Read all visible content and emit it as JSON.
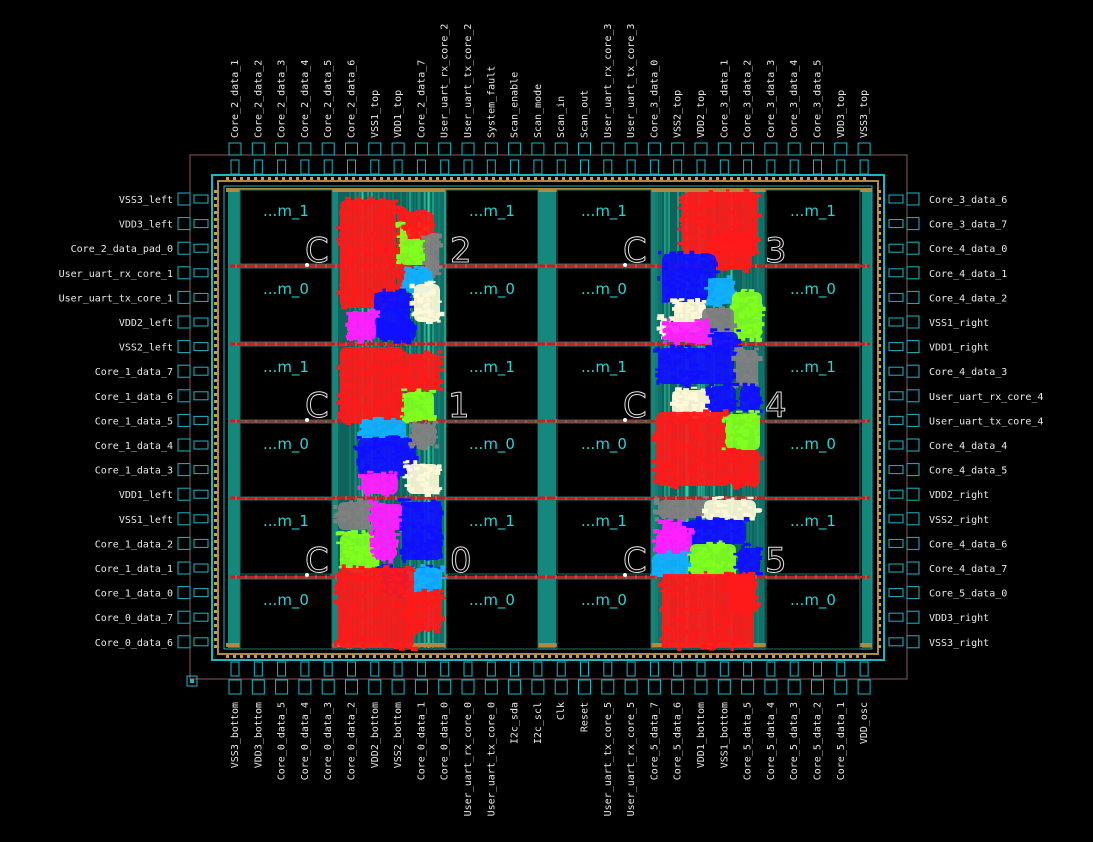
{
  "colors": {
    "background": "#000000",
    "pad_outline": "#1fb6c4",
    "core_ring": "#2a9a8a",
    "macro_text": "#2fd0d0",
    "cell_red": "#ff1a1a",
    "cell_blue": "#1010ff",
    "cell_green": "#80ff20",
    "cell_cyan": "#10b0ff",
    "cell_magenta": "#ff20ff",
    "cell_gray": "#808080",
    "cell_cream": "#fff8d8",
    "routing_red": "#c82020",
    "routing_teal": "#18a090"
  },
  "pins": {
    "top": [
      "Core_2_data_1",
      "Core_2_data_2",
      "Core_2_data_3",
      "Core_2_data_4",
      "Core_2_data_5",
      "Core_2_data_6",
      "VSS1_top",
      "VDD1_top",
      "Core_2_data_7",
      "User_uart_rx_core_2",
      "User_uart_tx_core_2",
      "System_fault",
      "Scan_enable",
      "Scan_mode",
      "Scan_in",
      "Scan_out",
      "User_uart_rx_core_3",
      "User_uart_tx_core_3",
      "Core_3_data_0",
      "VSS2_top",
      "VDD2_top",
      "Core_3_data_1",
      "Core_3_data_2",
      "Core_3_data_3",
      "Core_3_data_4",
      "Core_3_data_5",
      "VDD3_top",
      "VSS3_top"
    ],
    "bottom": [
      "VSS3_bottom",
      "VDD3_bottom",
      "Core_0_data_5",
      "Core_0_data_4",
      "Core_0_data_3",
      "Core_0_data_2",
      "VDD2_bottom",
      "VSS2_bottom",
      "Core_0_data_1",
      "Core_0_data_0",
      "User_uart_rx_core_0",
      "User_uart_tx_core_0",
      "I2c_sda",
      "I2c_scl",
      "Clk",
      "Reset",
      "User_uart_tx_core_5",
      "User_uart_rx_core_5",
      "Core_5_data_7",
      "Core_5_data_6",
      "VDD1_bottom",
      "VSS1_bottom",
      "Core_5_data_5",
      "Core_5_data_4",
      "Core_5_data_3",
      "Core_5_data_2",
      "Core_5_data_1",
      "VDD_osc"
    ],
    "left": [
      "VSS3_left",
      "VDD3_left",
      "Core_2_data_pad_0",
      "User_uart_rx_core_1",
      "User_uart_tx_core_1",
      "VDD2_left",
      "VSS2_left",
      "Core_1_data_7",
      "Core_1_data_6",
      "Core_1_data_5",
      "Core_1_data_4",
      "Core_1_data_3",
      "VDD1_left",
      "VSS1_left",
      "Core_1_data_2",
      "Core_1_data_1",
      "Core_1_data_0",
      "Core_0_data_7",
      "Core_0_data_6"
    ],
    "right": [
      "Core_3_data_6",
      "Core_3_data_7",
      "Core_4_data_0",
      "Core_4_data_1",
      "Core_4_data_2",
      "VSS1_right",
      "VDD1_right",
      "Core_4_data_3",
      "User_uart_rx_core_4",
      "User_uart_tx_core_4",
      "Core_4_data_4",
      "Core_4_data_5",
      "VDD2_right",
      "VSS2_right",
      "Core_4_data_6",
      "Core_4_data_7",
      "Core_5_data_0",
      "VDD3_right",
      "VSS3_right"
    ]
  },
  "macros": [
    {
      "label": "...m_1"
    },
    {
      "label": "...m_1"
    },
    {
      "label": "...m_1"
    },
    {
      "label": "...m_1"
    },
    {
      "label": "...m_0"
    },
    {
      "label": "...m_0"
    },
    {
      "label": "...m_0"
    },
    {
      "label": "...m_0"
    },
    {
      "label": "...m_1"
    },
    {
      "label": "...m_1"
    },
    {
      "label": "...m_1"
    },
    {
      "label": "...m_1"
    },
    {
      "label": "...m_0"
    },
    {
      "label": "...m_0"
    },
    {
      "label": "...m_0"
    },
    {
      "label": "...m_0"
    },
    {
      "label": "...m_1"
    },
    {
      "label": "...m_1"
    },
    {
      "label": "...m_1"
    },
    {
      "label": "...m_1"
    },
    {
      "label": "...m_0"
    },
    {
      "label": "...m_0"
    },
    {
      "label": "...m_0"
    },
    {
      "label": "...m_0"
    }
  ],
  "core_labels": [
    {
      "left": "C",
      "right": "2"
    },
    {
      "left": "C",
      "right": "3"
    },
    {
      "left": "C",
      "right": "1"
    },
    {
      "left": "C",
      "right": "4"
    },
    {
      "left": "C",
      "right": "0"
    },
    {
      "left": "C",
      "right": "5"
    }
  ]
}
